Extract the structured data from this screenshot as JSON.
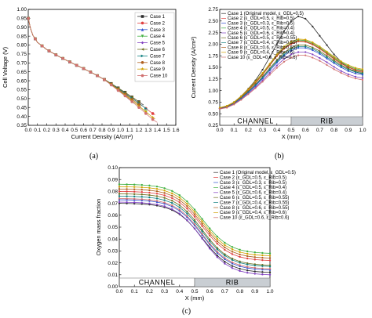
{
  "chart_data": [
    {
      "id": "a",
      "type": "line",
      "panel_label": "(a)",
      "xlabel": "Current Density (A/cm²)",
      "ylabel": "Cell Voltage (V)",
      "xlim": [
        0,
        1.6
      ],
      "ylim": [
        0.35,
        1.0
      ],
      "xticks": [
        0.0,
        0.1,
        0.2,
        0.3,
        0.4,
        0.5,
        0.6,
        0.7,
        0.8,
        0.9,
        1.0,
        1.1,
        1.2,
        1.3,
        1.4,
        1.5,
        1.6
      ],
      "yticks": [
        0.35,
        0.4,
        0.45,
        0.5,
        0.55,
        0.6,
        0.65,
        0.7,
        0.75,
        0.8,
        0.85,
        0.9,
        0.95,
        1.0
      ],
      "grid": false,
      "legend_position": "top-right",
      "series": [
        {
          "name": "Case 1",
          "color": "#2b2b2b",
          "marker": "square",
          "x_end": 1.26
        },
        {
          "name": "Case 2",
          "color": "#e04040",
          "marker": "circle",
          "x_end": 1.38
        },
        {
          "name": "Case 3",
          "color": "#3050d0",
          "marker": "triangle",
          "x_end": 1.08
        },
        {
          "name": "Case 4",
          "color": "#40b040",
          "marker": "triangle-down",
          "x_end": 1.31
        },
        {
          "name": "Case 5",
          "color": "#8040c0",
          "marker": "diamond",
          "x_end": 1.15
        },
        {
          "name": "Case 6",
          "color": "#707020",
          "marker": "triangle-left",
          "x_end": 1.22
        },
        {
          "name": "Case 7",
          "color": "#108080",
          "marker": "triangle-right",
          "x_end": 1.3
        },
        {
          "name": "Case 8",
          "color": "#b06020",
          "marker": "hexagon",
          "x_end": 1.23
        },
        {
          "name": "Case 9",
          "color": "#d0a000",
          "marker": "star",
          "x_end": 1.39
        },
        {
          "name": "Case 10",
          "color": "#d07070",
          "marker": "pentagon",
          "x_end": 1.42
        }
      ],
      "base_curve": {
        "x": [
          0.0,
          0.02,
          0.05,
          0.1,
          0.2,
          0.3,
          0.4,
          0.5,
          0.6,
          0.7,
          0.8,
          0.85,
          0.9,
          0.95,
          1.0,
          1.05,
          1.1,
          1.15,
          1.2,
          1.25,
          1.3,
          1.35,
          1.4,
          1.45
        ],
        "y": [
          0.95,
          0.9,
          0.855,
          0.815,
          0.775,
          0.745,
          0.718,
          0.693,
          0.668,
          0.642,
          0.614,
          0.598,
          0.58,
          0.562,
          0.543,
          0.525,
          0.505,
          0.486,
          0.466,
          0.446,
          0.425,
          0.405,
          0.39,
          0.375
        ]
      }
    },
    {
      "id": "b",
      "type": "line",
      "panel_label": "(b)",
      "xlabel": "X (mm)",
      "ylabel": "Current Density (A/cm²)",
      "xlim": [
        0,
        1.0
      ],
      "ylim": [
        0.25,
        2.75
      ],
      "xticks": [
        0.0,
        0.1,
        0.2,
        0.3,
        0.4,
        0.5,
        0.6,
        0.7,
        0.8,
        0.9,
        1.0
      ],
      "yticks": [
        0.25,
        0.5,
        0.75,
        1.0,
        1.25,
        1.5,
        1.75,
        2.0,
        2.25,
        2.5,
        2.75
      ],
      "grid": false,
      "legend_position": "top-left",
      "regions": [
        {
          "label": "CHANNEL",
          "x_start": 0.0,
          "x_end": 0.5,
          "shaded": false
        },
        {
          "label": "RIB",
          "x_start": 0.5,
          "x_end": 1.0,
          "shaded": true
        }
      ],
      "legend_entries": [
        "Case 1 (Original model, ε_GDL=0.5)",
        "Case 2 (ε_GDL=0.5, ε_Rib=0.5)",
        "Case 3 (ε_GDL=0.3, ε_Rib=0.5)",
        "Case 4 (ε_GDL=0.5, ε_Rib=0.4)",
        "Case 5 (ε_GDL=0.6, ε_Rib=0.4)",
        "Case 6 (ε_GDL=0.5, ε_Rib=0.55)",
        "Case 7 (ε_GDL=0.4, ε_Rib=0.55)",
        "Case 8 (ε_GDL=0.6, ε_Rib=0.55)",
        "Case 9 (ε_GDL=0.4, ε_Rib=0.6)",
        "Case 10 (ε_GDL=0.6, ε_Rib=0.6)"
      ],
      "x": [
        0.0,
        0.05,
        0.1,
        0.15,
        0.2,
        0.25,
        0.3,
        0.35,
        0.4,
        0.45,
        0.5,
        0.55,
        0.6,
        0.65,
        0.7,
        0.75,
        0.8,
        0.85,
        0.9,
        0.95,
        1.0
      ],
      "series": [
        {
          "name": "Case 1",
          "color": "#2b2b2b",
          "values": [
            0.62,
            0.66,
            0.75,
            0.88,
            1.04,
            1.22,
            1.45,
            1.72,
            2.0,
            2.28,
            2.5,
            2.6,
            2.55,
            2.38,
            2.18,
            1.98,
            1.78,
            1.62,
            1.48,
            1.4,
            1.36
          ]
        },
        {
          "name": "Case 2",
          "color": "#e04040",
          "values": [
            0.62,
            0.66,
            0.74,
            0.86,
            1.0,
            1.16,
            1.34,
            1.54,
            1.74,
            1.9,
            2.0,
            2.06,
            2.05,
            1.99,
            1.9,
            1.79,
            1.68,
            1.58,
            1.5,
            1.44,
            1.41
          ]
        },
        {
          "name": "Case 3",
          "color": "#3050d0",
          "values": [
            0.61,
            0.65,
            0.72,
            0.83,
            0.96,
            1.1,
            1.26,
            1.43,
            1.6,
            1.75,
            1.86,
            1.92,
            1.92,
            1.87,
            1.79,
            1.69,
            1.59,
            1.5,
            1.42,
            1.37,
            1.34
          ]
        },
        {
          "name": "Case 4",
          "color": "#40b040",
          "values": [
            0.63,
            0.67,
            0.75,
            0.87,
            1.02,
            1.18,
            1.36,
            1.56,
            1.76,
            1.92,
            2.03,
            2.09,
            2.08,
            2.02,
            1.93,
            1.82,
            1.71,
            1.61,
            1.53,
            1.47,
            1.44
          ]
        },
        {
          "name": "Case 5",
          "color": "#8040c0",
          "values": [
            0.61,
            0.64,
            0.71,
            0.81,
            0.94,
            1.07,
            1.22,
            1.38,
            1.54,
            1.68,
            1.78,
            1.83,
            1.83,
            1.78,
            1.7,
            1.61,
            1.51,
            1.42,
            1.35,
            1.3,
            1.27
          ]
        },
        {
          "name": "Case 6",
          "color": "#707020",
          "values": [
            0.62,
            0.66,
            0.73,
            0.85,
            0.98,
            1.13,
            1.3,
            1.48,
            1.66,
            1.82,
            1.92,
            1.98,
            1.98,
            1.93,
            1.85,
            1.75,
            1.65,
            1.55,
            1.47,
            1.42,
            1.39
          ]
        },
        {
          "name": "Case 7",
          "color": "#108080",
          "values": [
            0.62,
            0.65,
            0.73,
            0.84,
            0.97,
            1.12,
            1.28,
            1.46,
            1.63,
            1.78,
            1.89,
            1.95,
            1.95,
            1.9,
            1.82,
            1.72,
            1.62,
            1.53,
            1.45,
            1.4,
            1.37
          ]
        },
        {
          "name": "Case 8",
          "color": "#b06020",
          "values": [
            0.62,
            0.66,
            0.74,
            0.86,
            1.01,
            1.17,
            1.35,
            1.55,
            1.75,
            1.91,
            2.02,
            2.07,
            2.06,
            2.0,
            1.91,
            1.8,
            1.69,
            1.59,
            1.51,
            1.45,
            1.42
          ]
        },
        {
          "name": "Case 9",
          "color": "#d0a000",
          "values": [
            0.63,
            0.67,
            0.75,
            0.88,
            1.03,
            1.2,
            1.38,
            1.58,
            1.78,
            1.95,
            2.06,
            2.11,
            2.1,
            2.04,
            1.95,
            1.84,
            1.73,
            1.63,
            1.55,
            1.49,
            1.46
          ]
        },
        {
          "name": "Case 10",
          "color": "#d07070",
          "values": [
            0.6,
            0.63,
            0.7,
            0.8,
            0.92,
            1.05,
            1.19,
            1.34,
            1.49,
            1.62,
            1.71,
            1.76,
            1.76,
            1.71,
            1.64,
            1.55,
            1.46,
            1.38,
            1.31,
            1.26,
            1.23
          ]
        }
      ]
    },
    {
      "id": "c",
      "type": "line",
      "panel_label": "(c)",
      "xlabel": "X (mm)",
      "ylabel": "Oxygen mass fraction",
      "xlim": [
        0,
        1.0
      ],
      "ylim": [
        0.0,
        0.1
      ],
      "xticks": [
        0.0,
        0.1,
        0.2,
        0.3,
        0.4,
        0.5,
        0.6,
        0.7,
        0.8,
        0.9,
        1.0
      ],
      "yticks": [
        0.0,
        0.01,
        0.02,
        0.03,
        0.04,
        0.05,
        0.06,
        0.07,
        0.08,
        0.09,
        0.1
      ],
      "grid": false,
      "legend_position": "top-right",
      "regions": [
        {
          "label": "CHANNEL",
          "x_start": 0.0,
          "x_end": 0.5,
          "shaded": false
        },
        {
          "label": "RIB",
          "x_start": 0.5,
          "x_end": 1.0,
          "shaded": true
        }
      ],
      "legend_entries": [
        "Case 1 (Original model, ε_GDL=0.5)",
        "Case 2 (ε_GDL=0.5, ε_Rib=0.5)",
        "Case 3 (ε_GDL=0.3, ε_Rib=0.5)",
        "Case 4 (ε_GDL=0.5, ε_Rib=0.4)",
        "Case 5 (ε_GDL=0.6, ε_Rib=0.4)",
        "Case 6 (ε_GDL=0.5, ε_Rib=0.55)",
        "Case 7 (ε_GDL=0.4, ε_Rib=0.55)",
        "Case 8 (ε_GDL=0.6, ε_Rib=0.55)",
        "Case 9 (ε_GDL=0.4, ε_Rib=0.6)",
        "Case 10 (ε_GDL=0.6, ε_Rib=0.6)"
      ],
      "x": [
        0.0,
        0.05,
        0.1,
        0.15,
        0.2,
        0.25,
        0.3,
        0.35,
        0.4,
        0.45,
        0.5,
        0.55,
        0.6,
        0.65,
        0.7,
        0.75,
        0.8,
        0.85,
        0.9,
        0.95,
        1.0
      ],
      "series": [
        {
          "name": "Case 1",
          "color": "#2b2b2b",
          "start": 0.07,
          "end": 0.012
        },
        {
          "name": "Case 2",
          "color": "#e04040",
          "start": 0.08,
          "end": 0.022
        },
        {
          "name": "Case 3",
          "color": "#3050d0",
          "start": 0.073,
          "end": 0.014
        },
        {
          "name": "Case 4",
          "color": "#40b040",
          "start": 0.086,
          "end": 0.028
        },
        {
          "name": "Case 5",
          "color": "#8040c0",
          "start": 0.071,
          "end": 0.01
        },
        {
          "name": "Case 6",
          "color": "#707020",
          "start": 0.078,
          "end": 0.018
        },
        {
          "name": "Case 7",
          "color": "#108080",
          "start": 0.076,
          "end": 0.017
        },
        {
          "name": "Case 8",
          "color": "#b06020",
          "start": 0.082,
          "end": 0.024
        },
        {
          "name": "Case 9",
          "color": "#d0a000",
          "start": 0.084,
          "end": 0.026
        },
        {
          "name": "Case 10",
          "color": "#d07070",
          "start": 0.074,
          "end": 0.015
        }
      ]
    }
  ]
}
